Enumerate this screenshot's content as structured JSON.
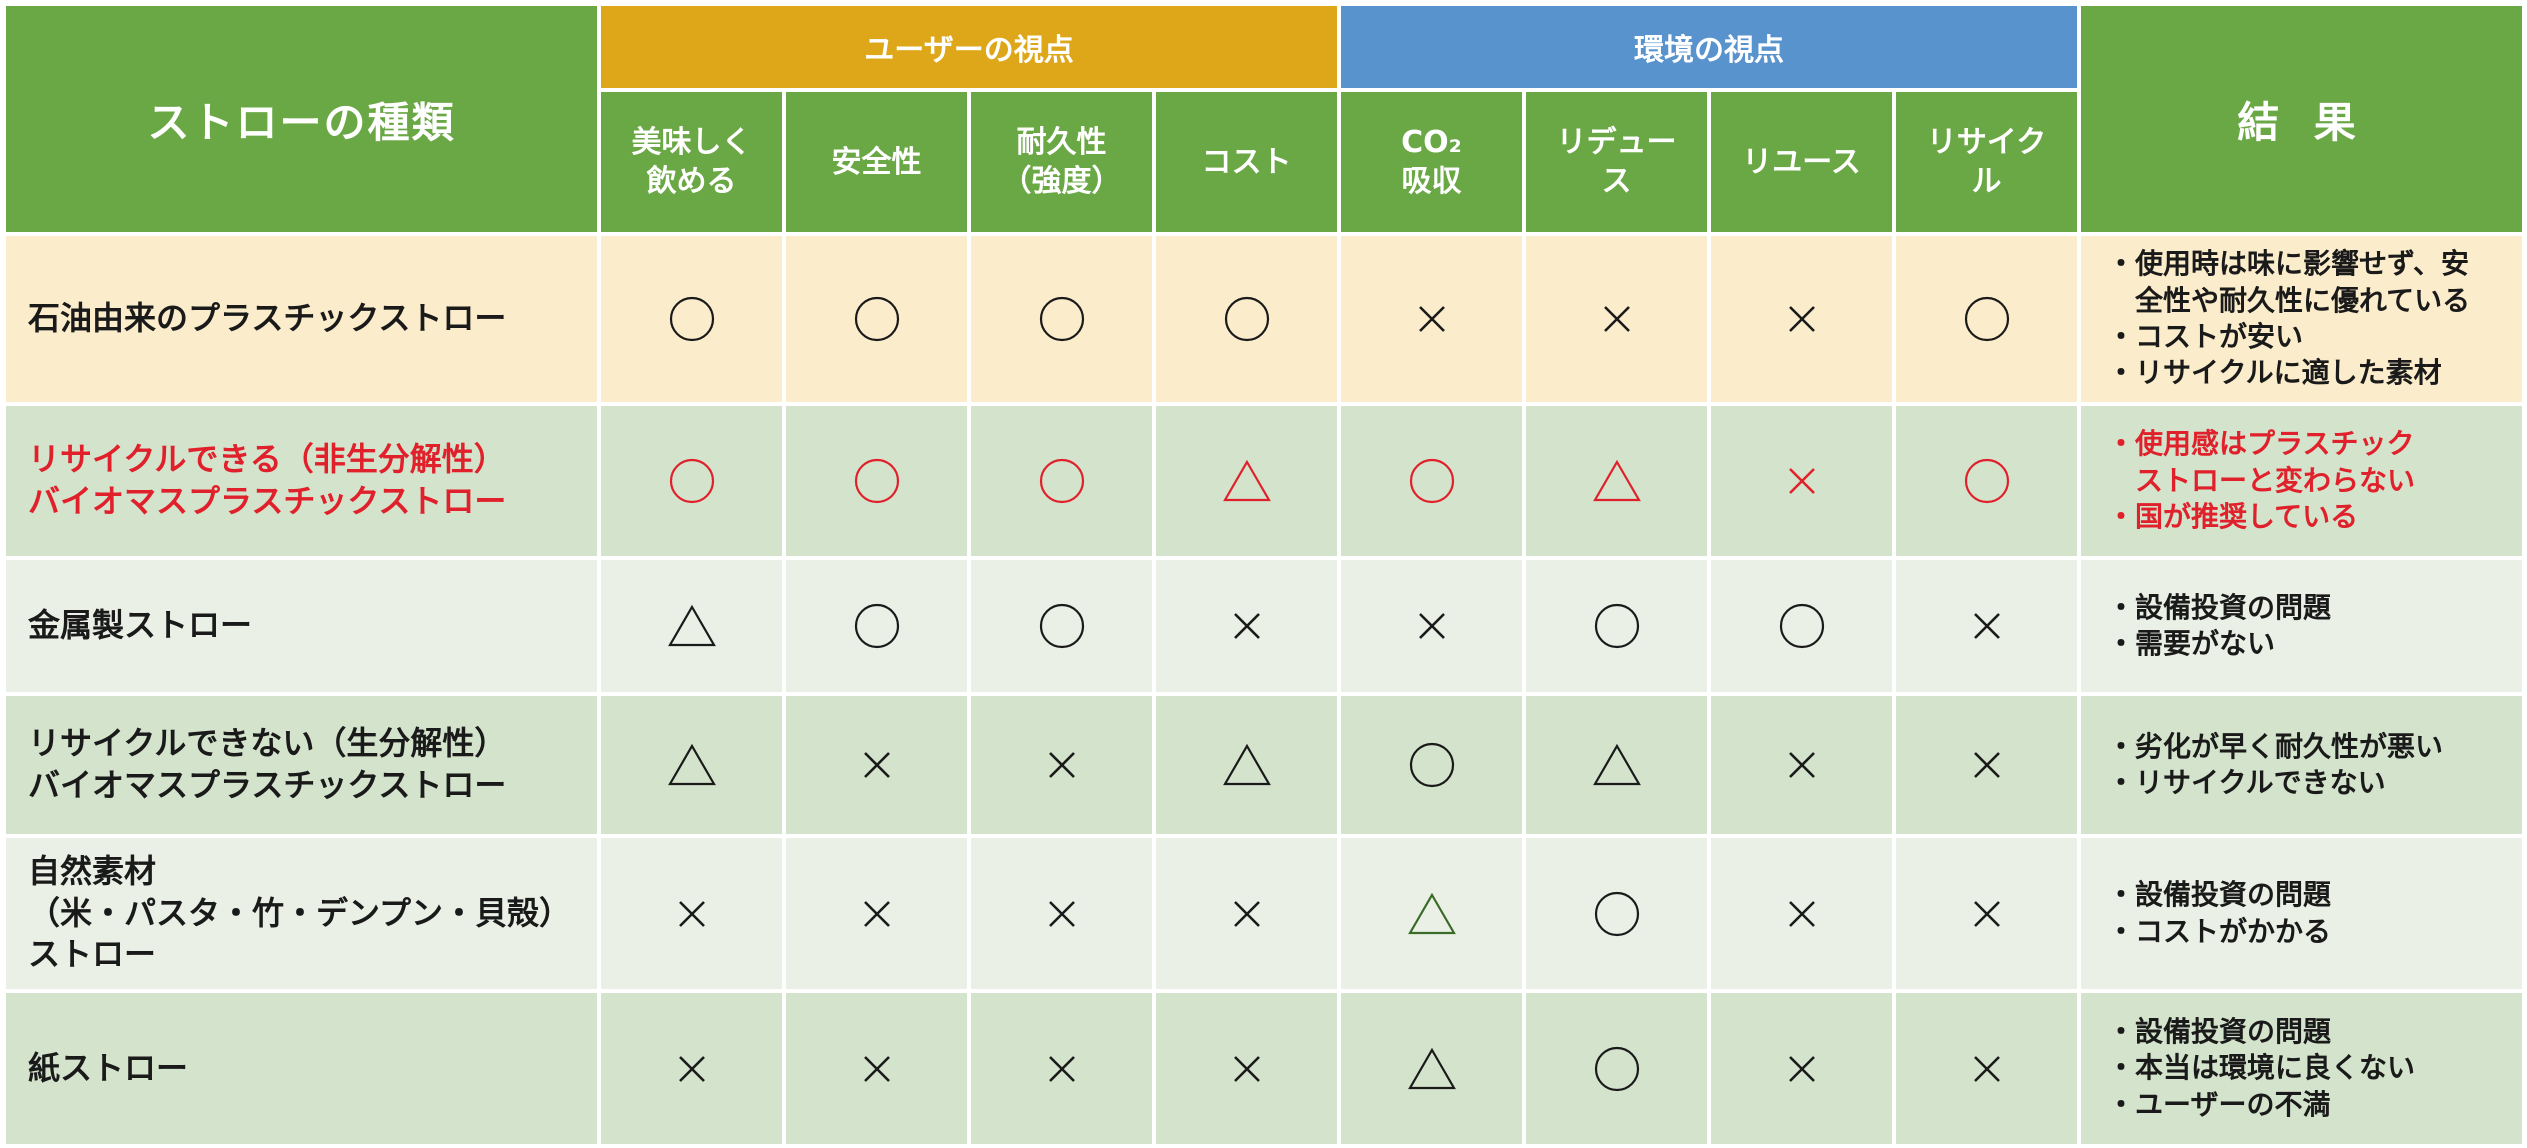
{
  "header": {
    "type_label": "ストローの種類",
    "result_label": "結 果",
    "group_user": "ユーザーの視点",
    "group_env": "環境の視点"
  },
  "criteria": [
    "美味しく\n飲める",
    "安全性",
    "耐久性\n（強度）",
    "コスト",
    "CO₂\n吸収",
    "リデュー\nス",
    "リユース",
    "リサイク\nル"
  ],
  "rows": [
    {
      "name": "石油由来のプラスチックストロー",
      "marks": [
        "○",
        "○",
        "○",
        "○",
        "×",
        "×",
        "×",
        "○"
      ],
      "result": "・使用時は味に影響せず、安\n　全性や耐久性に優れている\n・コストが安い\n・リサイクルに適した素材"
    },
    {
      "name": "リサイクルできる（非生分解性）\nバイオマスプラスチックストロー",
      "marks": [
        "○",
        "○",
        "○",
        "△",
        "○",
        "△",
        "×",
        "○"
      ],
      "result": "・使用感はプラスチック\n　ストローと変わらない\n・国が推奨している"
    },
    {
      "name": "金属製ストロー",
      "marks": [
        "△",
        "○",
        "○",
        "×",
        "×",
        "○",
        "○",
        "×"
      ],
      "result": "・設備投資の問題\n・需要がない"
    },
    {
      "name": "リサイクルできない（生分解性）\nバイオマスプラスチックストロー",
      "marks": [
        "△",
        "×",
        "×",
        "△",
        "○",
        "△",
        "×",
        "×"
      ],
      "result": "・劣化が早く耐久性が悪い\n・リサイクルできない"
    },
    {
      "name": "自然素材\n（米・パスタ・竹・デンプン・貝殻）\nストロー",
      "marks": [
        "×",
        "×",
        "×",
        "×",
        "△",
        "○",
        "×",
        "×"
      ],
      "result": "・設備投資の問題\n・コストがかかる"
    },
    {
      "name": "紙ストロー",
      "marks": [
        "×",
        "×",
        "×",
        "×",
        "△",
        "○",
        "×",
        "×"
      ],
      "result": "・設備投資の問題\n・本当は環境に良くない\n・ユーザーの不満"
    }
  ],
  "colors": {
    "header_green": "#6aa745",
    "user_gold": "#dea71a",
    "env_blue": "#5993cd",
    "highlight_red": "#e0212b",
    "row_yellow": "#fbedcc",
    "row_green": "#d3e3cc",
    "row_light": "#eaf0e6"
  }
}
